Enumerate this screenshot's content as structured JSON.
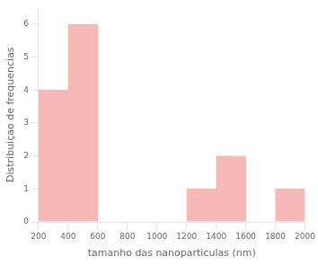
{
  "chart_data": {
    "type": "histogram",
    "bins": [
      200,
      400,
      600,
      800,
      1000,
      1200,
      1400,
      1600,
      1800,
      2000
    ],
    "values": [
      4,
      6,
      0,
      0,
      0,
      1,
      2,
      0,
      1
    ],
    "color": "#f7b8b8",
    "xlabel": "tamanho das nanoparticulas (nm)",
    "ylabel": "Distribuiçao de frequencias",
    "xlim": [
      200,
      2000
    ],
    "ylim": [
      0,
      6.5
    ],
    "xticks": [
      200,
      400,
      600,
      800,
      1000,
      1200,
      1400,
      1600,
      1800,
      2000
    ],
    "yticks": [
      0,
      1,
      2,
      3,
      4,
      5,
      6
    ],
    "grid": false
  }
}
